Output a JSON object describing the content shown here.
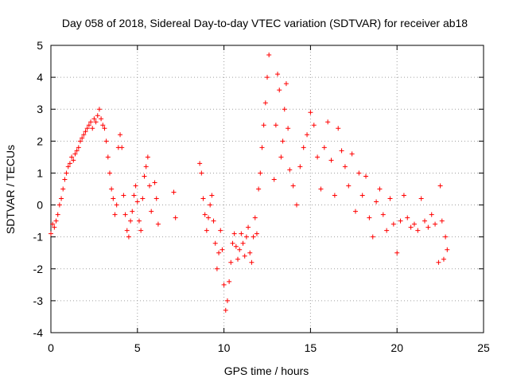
{
  "chart_data": {
    "type": "scatter",
    "title": "Day 058 of 2018, Sidereal Day-to-day VTEC variation (SDTVAR) for receiver ab18",
    "xlabel": "GPS time / hours",
    "ylabel": "SDTVAR / TECUs",
    "xlim": [
      0,
      25
    ],
    "ylim": [
      -4,
      5
    ],
    "xticks": [
      0,
      5,
      10,
      15,
      20,
      25
    ],
    "xtick_labels": [
      "0",
      "5",
      "10",
      "15",
      "20",
      "25"
    ],
    "yticks": [
      -4,
      -3,
      -2,
      -1,
      0,
      1,
      2,
      3,
      4,
      5
    ],
    "ytick_labels": [
      "-4",
      "-3",
      "-2",
      "-1",
      "0",
      "1",
      "2",
      "3",
      "4",
      "5"
    ],
    "grid": true,
    "marker": "+",
    "series": [
      {
        "name": "SDTVAR",
        "color": "#ff0000",
        "x": [
          0.0,
          0.1,
          0.2,
          0.3,
          0.4,
          0.5,
          0.6,
          0.7,
          0.8,
          0.9,
          1.0,
          1.1,
          1.2,
          1.3,
          1.4,
          1.5,
          1.6,
          1.7,
          1.8,
          1.9,
          2.0,
          2.1,
          2.2,
          2.3,
          2.4,
          2.5,
          2.6,
          2.7,
          2.8,
          2.9,
          3.0,
          3.1,
          3.2,
          3.3,
          3.4,
          3.5,
          3.6,
          3.7,
          3.8,
          3.9,
          4.0,
          4.1,
          4.2,
          4.3,
          4.4,
          4.5,
          4.6,
          4.7,
          4.8,
          4.9,
          5.0,
          5.1,
          5.2,
          5.3,
          5.4,
          5.5,
          5.6,
          5.7,
          5.8,
          6.0,
          6.1,
          6.2,
          7.1,
          7.2,
          8.6,
          8.7,
          8.8,
          8.9,
          9.0,
          9.1,
          9.2,
          9.3,
          9.4,
          9.5,
          9.6,
          9.7,
          9.8,
          9.9,
          10.0,
          10.1,
          10.2,
          10.3,
          10.4,
          10.5,
          10.6,
          10.7,
          10.8,
          10.9,
          11.0,
          11.1,
          11.2,
          11.3,
          11.4,
          11.5,
          11.6,
          11.7,
          11.8,
          11.9,
          12.0,
          12.1,
          12.2,
          12.3,
          12.4,
          12.5,
          12.6,
          12.9,
          13.0,
          13.1,
          13.2,
          13.3,
          13.4,
          13.5,
          13.6,
          13.7,
          13.8,
          14.0,
          14.2,
          14.4,
          14.6,
          14.8,
          15.0,
          15.2,
          15.4,
          15.6,
          15.8,
          16.0,
          16.2,
          16.4,
          16.6,
          16.8,
          17.0,
          17.2,
          17.4,
          17.6,
          17.8,
          18.0,
          18.2,
          18.4,
          18.6,
          18.8,
          19.0,
          19.2,
          19.4,
          19.6,
          19.8,
          20.0,
          20.2,
          20.4,
          20.6,
          20.8,
          21.0,
          21.2,
          21.4,
          21.6,
          21.8,
          22.0,
          22.2,
          22.4,
          22.5,
          22.6,
          22.7,
          22.8,
          22.9
        ],
        "y": [
          -0.9,
          -0.6,
          -0.7,
          -0.5,
          -0.3,
          0.0,
          0.2,
          0.5,
          0.8,
          1.0,
          1.2,
          1.3,
          1.5,
          1.4,
          1.6,
          1.7,
          1.8,
          2.0,
          2.1,
          2.2,
          2.3,
          2.4,
          2.5,
          2.6,
          2.4,
          2.7,
          2.6,
          2.8,
          3.0,
          2.7,
          2.5,
          2.4,
          2.0,
          1.5,
          1.0,
          0.5,
          0.2,
          -0.3,
          0.0,
          1.8,
          2.2,
          1.8,
          0.3,
          -0.3,
          -0.8,
          -1.0,
          -0.5,
          -0.2,
          0.3,
          0.6,
          0.1,
          -0.5,
          -0.8,
          0.2,
          0.9,
          1.2,
          1.5,
          0.6,
          -0.2,
          0.7,
          0.2,
          -0.6,
          0.4,
          -0.4,
          1.3,
          1.0,
          0.2,
          -0.3,
          -0.8,
          -0.4,
          0.0,
          0.3,
          -0.5,
          -1.2,
          -2.0,
          -1.5,
          -0.8,
          -1.4,
          -2.5,
          -3.3,
          -3.0,
          -2.4,
          -1.8,
          -1.2,
          -0.9,
          -1.3,
          -1.7,
          -1.4,
          -0.9,
          -1.2,
          -1.6,
          -1.0,
          -0.7,
          -1.5,
          -1.8,
          -1.0,
          -0.4,
          -0.9,
          0.5,
          1.0,
          1.8,
          2.5,
          3.2,
          4.0,
          4.7,
          0.8,
          2.5,
          4.1,
          3.6,
          1.5,
          2.0,
          3.0,
          3.8,
          2.4,
          1.1,
          0.6,
          0.0,
          1.2,
          1.8,
          2.2,
          2.9,
          2.5,
          1.5,
          0.5,
          1.8,
          2.6,
          1.4,
          0.3,
          2.4,
          1.7,
          1.2,
          0.6,
          1.6,
          -0.2,
          1.0,
          0.3,
          0.9,
          -0.4,
          -1.0,
          0.1,
          0.5,
          -0.3,
          -0.8,
          0.2,
          -0.6,
          -1.5,
          -0.5,
          0.3,
          -0.4,
          -0.7,
          -0.6,
          -0.8,
          0.2,
          -0.5,
          -0.7,
          -0.3,
          -0.6,
          -1.8,
          0.6,
          -0.5,
          -1.7,
          -1.0,
          -1.4
        ]
      }
    ]
  }
}
